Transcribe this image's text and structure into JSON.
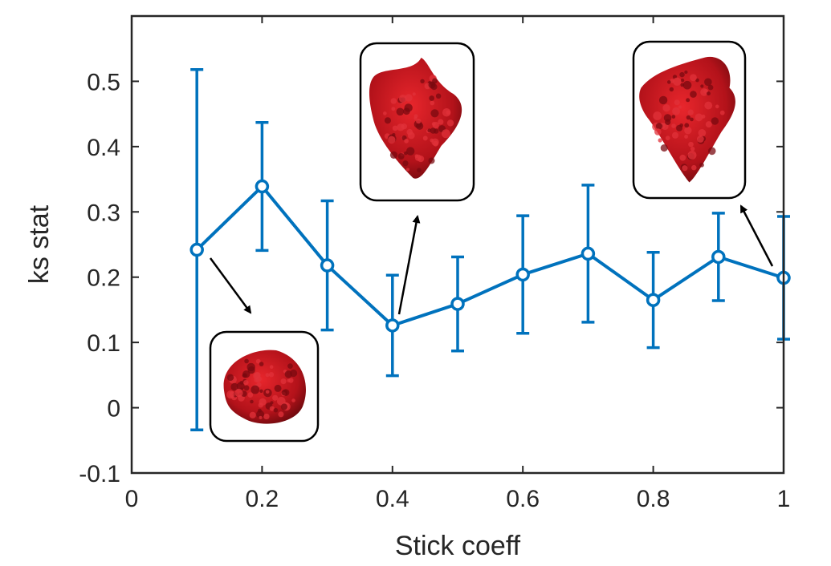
{
  "chart_data": {
    "type": "line",
    "title": "",
    "xlabel": "Stick coeff",
    "ylabel": "ks stat",
    "xlim": [
      0,
      1
    ],
    "ylim": [
      -0.1,
      0.6
    ],
    "xticks": [
      0,
      0.2,
      0.4,
      0.6,
      0.8,
      1
    ],
    "xtick_labels": [
      "0",
      "0.2",
      "0.4",
      "0.6",
      "0.8",
      "1"
    ],
    "yticks": [
      -0.1,
      0,
      0.1,
      0.2,
      0.3,
      0.4,
      0.5
    ],
    "ytick_labels": [
      "-0.1",
      "0",
      "0.1",
      "0.2",
      "0.3",
      "0.4",
      "0.5"
    ],
    "grid": false,
    "series": [
      {
        "name": "ks stat",
        "color": "#0072BD",
        "marker": "circle",
        "x": [
          0.1,
          0.2,
          0.3,
          0.4,
          0.5,
          0.6,
          0.7,
          0.8,
          0.9,
          1.0
        ],
        "y": [
          0.242,
          0.339,
          0.218,
          0.126,
          0.159,
          0.204,
          0.236,
          0.165,
          0.231,
          0.199
        ],
        "err_lower": [
          -0.034,
          0.241,
          0.119,
          0.049,
          0.087,
          0.114,
          0.131,
          0.092,
          0.164,
          0.105
        ],
        "err_upper": [
          0.518,
          0.437,
          0.317,
          0.203,
          0.231,
          0.294,
          0.341,
          0.238,
          0.298,
          0.293
        ]
      }
    ],
    "insets": [
      {
        "name": "inset-cluster-round",
        "shape": "round",
        "color": "#c0141c",
        "near_x": 0.1
      },
      {
        "name": "inset-cluster-mid",
        "shape": "elongated",
        "color": "#c0141c",
        "near_x": 0.4
      },
      {
        "name": "inset-cluster-tall",
        "shape": "elongated",
        "color": "#c0141c",
        "near_x": 1.0
      }
    ]
  }
}
